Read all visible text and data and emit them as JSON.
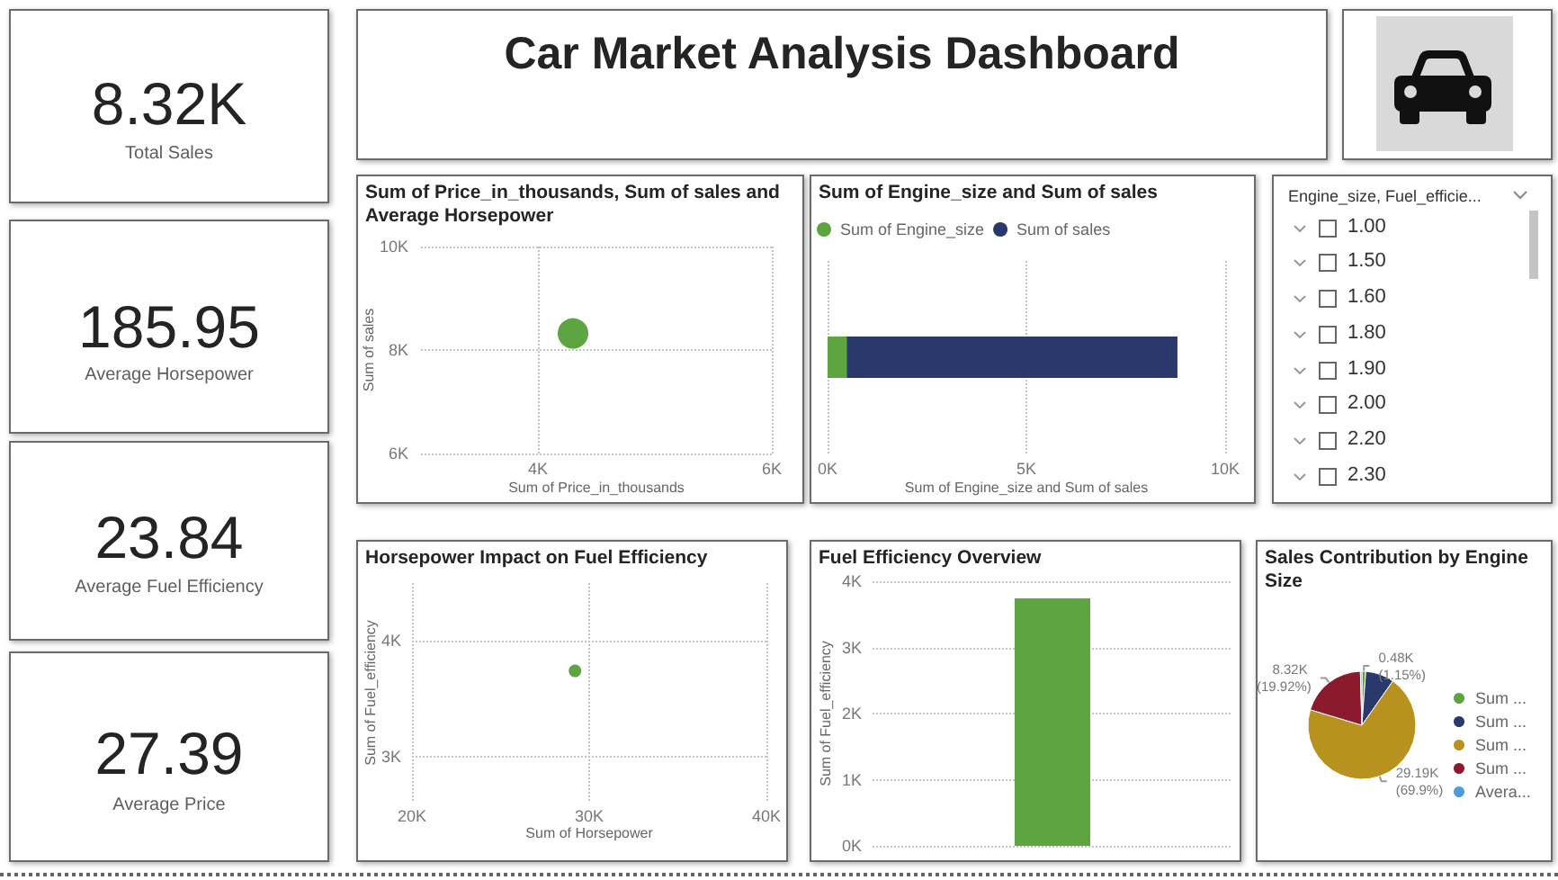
{
  "chart_data": [
    {
      "type": "other",
      "title": "Car Market Analysis Dashboard"
    },
    {
      "type": "other",
      "title": "Total Sales",
      "annotations": [
        "8.32K"
      ]
    },
    {
      "type": "other",
      "title": "Average Horsepower",
      "annotations": [
        "185.95"
      ]
    },
    {
      "type": "other",
      "title": "Average Fuel Efficiency",
      "annotations": [
        "23.84"
      ]
    },
    {
      "type": "other",
      "title": "Average Price",
      "annotations": [
        "27.39"
      ]
    },
    {
      "type": "bubble",
      "title": "Sum of Price_in_thousands, Sum of sales and Average Horsepower",
      "xlabel": "Sum of Price_in_thousands",
      "ylabel": "Sum of sales",
      "x": [
        4300
      ],
      "values": [
        8320
      ],
      "sizes": [
        1
      ],
      "color": "#5da541",
      "xlim": [
        3000,
        6000
      ],
      "xticks": [
        {
          "value": 4000,
          "label": "4K"
        },
        {
          "value": 6000,
          "label": "6K"
        }
      ],
      "ylim": [
        6000,
        10000
      ],
      "yticks": [
        {
          "value": 6000,
          "label": "6K"
        },
        {
          "value": 8000,
          "label": "8K"
        },
        {
          "value": 10000,
          "label": "10K"
        }
      ],
      "grid": true,
      "marker": "circle"
    },
    {
      "type": "bar",
      "title": "Sum of Engine_size and Sum of sales",
      "xlabel": "Sum of Engine_size and Sum of sales",
      "orientation": "horizontal",
      "stacked": true,
      "categories": [
        null
      ],
      "series": [
        {
          "name": "Sum of Engine_size",
          "color": "#5da541",
          "values": [
            480
          ]
        },
        {
          "name": "Sum of sales",
          "color": "#2b386b",
          "values": [
            8320
          ]
        }
      ],
      "xlim": [
        0,
        10000
      ],
      "xticks": [
        {
          "value": 0,
          "label": "0K"
        },
        {
          "value": 5000,
          "label": "5K"
        },
        {
          "value": 10000,
          "label": "10K"
        }
      ],
      "grid": "x",
      "legend": "top left"
    },
    {
      "type": "other",
      "title": "Engine_size, Fuel_efficie...",
      "annotations": [
        "1.00",
        "1.50",
        "1.60",
        "1.80",
        "1.90",
        "2.00",
        "2.20",
        "2.30"
      ]
    },
    {
      "type": "scatter",
      "title": "Horsepower Impact on Fuel Efficiency",
      "xlabel": "Sum of Horsepower",
      "ylabel": "Sum of Fuel_efficiency",
      "x": [
        29200
      ],
      "values": [
        3740
      ],
      "color": "#5da541",
      "xlim": [
        20000,
        40000
      ],
      "xticks": [
        {
          "value": 20000,
          "label": "20K"
        },
        {
          "value": 30000,
          "label": "30K"
        },
        {
          "value": 40000,
          "label": "40K"
        }
      ],
      "ylim": [
        2600,
        4500
      ],
      "yticks": [
        {
          "value": 3000,
          "label": "3K"
        },
        {
          "value": 4000,
          "label": "4K"
        }
      ],
      "grid": true,
      "marker": "circle"
    },
    {
      "type": "bar",
      "title": "Fuel Efficiency Overview",
      "ylabel": "Sum of Fuel_efficiency",
      "categories": [
        null
      ],
      "values": [
        3740
      ],
      "color": "#5da541",
      "ylim": [
        0,
        4000
      ],
      "yticks": [
        {
          "value": 0,
          "label": "0K"
        },
        {
          "value": 1000,
          "label": "1K"
        },
        {
          "value": 2000,
          "label": "2K"
        },
        {
          "value": 3000,
          "label": "3K"
        },
        {
          "value": 4000,
          "label": "4K"
        }
      ],
      "grid": "y"
    },
    {
      "type": "pie",
      "title": "Sales Contribution by Engine Size",
      "categories": [
        "Sum ...",
        "Sum ...",
        "Sum ...",
        "Sum ...",
        "Avera..."
      ],
      "values": [
        1.15,
        8.58,
        69.9,
        19.92,
        0.45
      ],
      "colors": [
        "#5da541",
        "#2b386b",
        "#b8921f",
        "#8b1a2e",
        "#4c9bdb"
      ],
      "value_labels": [
        "0.48K (1.15%)",
        null,
        "29.19K (69.9%)",
        "8.32K (19.92%)",
        null
      ],
      "legend": "right"
    }
  ]
}
